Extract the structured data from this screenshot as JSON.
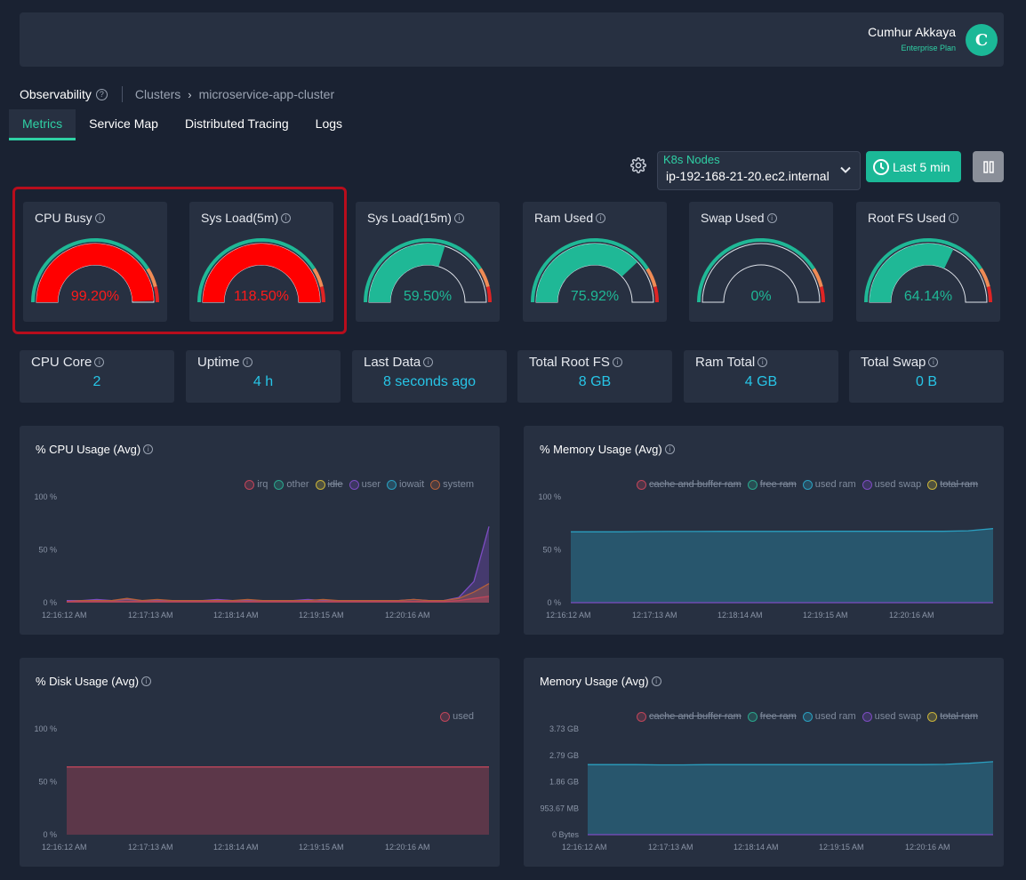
{
  "user": {
    "name": "Cumhur Akkaya",
    "plan": "Enterprise Plan",
    "avatar_letter": "C"
  },
  "breadcrumb": {
    "app": "Observability",
    "clusters": "Clusters",
    "arrow": "›",
    "cluster": "microservice-app-cluster",
    "help_glyph": "?"
  },
  "tabs": [
    {
      "label": "Metrics",
      "active": true
    },
    {
      "label": "Service Map",
      "active": false
    },
    {
      "label": "Distributed Tracing",
      "active": false
    },
    {
      "label": "Logs",
      "active": false
    }
  ],
  "controls": {
    "node_select_label": "K8s Nodes",
    "node_select_value": "ip-192-168-21-20.ec2.internal",
    "time_range": "Last 5 min",
    "icons": {
      "settings": "gear-icon",
      "time": "clock-icon",
      "pause": "pause-icon",
      "dropdown": "chevron-down-icon"
    }
  },
  "gauges": [
    {
      "title": "CPU Busy",
      "value": "99.20%",
      "fraction": 0.992,
      "color": "#ff0000"
    },
    {
      "title": "Sys Load(5m)",
      "value": "118.50%",
      "fraction": 1.0,
      "color": "#ff0000"
    },
    {
      "title": "Sys Load(15m)",
      "value": "59.50%",
      "fraction": 0.595,
      "color": "#1fb896"
    },
    {
      "title": "Ram Used",
      "value": "75.92%",
      "fraction": 0.7592,
      "color": "#1fb896"
    },
    {
      "title": "Swap Used",
      "value": "0%",
      "fraction": 0,
      "color": "#1fb896"
    },
    {
      "title": "Root FS Used",
      "value": "64.14%",
      "fraction": 0.6414,
      "color": "#1fb896"
    }
  ],
  "stats": [
    {
      "title": "CPU Core",
      "value": "2"
    },
    {
      "title": "Uptime",
      "value": "4 h"
    },
    {
      "title": "Last Data",
      "value": "8 seconds ago"
    },
    {
      "title": "Total Root FS",
      "value": "8 GB"
    },
    {
      "title": "Ram Total",
      "value": "4 GB"
    },
    {
      "title": "Total Swap",
      "value": "0 B"
    }
  ],
  "charts": [
    {
      "title": "% CPU Usage (Avg)",
      "legend": [
        {
          "name": "irq",
          "color": "#c0455a",
          "disabled": false
        },
        {
          "name": "other",
          "color": "#2aa58c",
          "disabled": false
        },
        {
          "name": "idle",
          "color": "#c9b33a",
          "disabled": true
        },
        {
          "name": "user",
          "color": "#7d4cc2",
          "disabled": false
        },
        {
          "name": "iowait",
          "color": "#2a9fc0",
          "disabled": false
        },
        {
          "name": "system",
          "color": "#b5603a",
          "disabled": false
        }
      ],
      "y_ticks": [
        "100 %",
        "50 %",
        "0 %"
      ],
      "x_ticks": [
        "12:16:12 AM",
        "12:17:13 AM",
        "12:18:14 AM",
        "12:19:15 AM",
        "12:20:16 AM"
      ]
    },
    {
      "title": "% Memory Usage (Avg)",
      "legend": [
        {
          "name": "cache and buffer ram",
          "color": "#c0455a",
          "disabled": true
        },
        {
          "name": "free ram",
          "color": "#2aa58c",
          "disabled": true
        },
        {
          "name": "used ram",
          "color": "#2a9fc0",
          "disabled": false
        },
        {
          "name": "used swap",
          "color": "#7d4cc2",
          "disabled": false
        },
        {
          "name": "total ram",
          "color": "#c9b33a",
          "disabled": true
        }
      ],
      "y_ticks": [
        "100 %",
        "50 %",
        "0 %"
      ],
      "x_ticks": [
        "12:16:12 AM",
        "12:17:13 AM",
        "12:18:14 AM",
        "12:19:15 AM",
        "12:20:16 AM"
      ]
    },
    {
      "title": "% Disk Usage (Avg)",
      "legend": [
        {
          "name": "used",
          "color": "#c0455a",
          "disabled": false
        }
      ],
      "y_ticks": [
        "100 %",
        "50 %",
        "0 %"
      ],
      "x_ticks": [
        "12:16:12 AM",
        "12:17:13 AM",
        "12:18:14 AM",
        "12:19:15 AM",
        "12:20:16 AM"
      ]
    },
    {
      "title": "Memory Usage (Avg)",
      "legend": [
        {
          "name": "cache and buffer ram",
          "color": "#c0455a",
          "disabled": true
        },
        {
          "name": "free ram",
          "color": "#2aa58c",
          "disabled": true
        },
        {
          "name": "used ram",
          "color": "#2a9fc0",
          "disabled": false
        },
        {
          "name": "used swap",
          "color": "#7d4cc2",
          "disabled": false
        },
        {
          "name": "total ram",
          "color": "#c9b33a",
          "disabled": true
        }
      ],
      "y_ticks": [
        "3.73 GB",
        "2.79 GB",
        "1.86 GB",
        "953.67 MB",
        "0 Bytes"
      ],
      "x_ticks": [
        "12:16:12 AM",
        "12:17:13 AM",
        "12:18:14 AM",
        "12:19:15 AM",
        "12:20:16 AM"
      ]
    }
  ],
  "chart_data": [
    {
      "type": "area",
      "ylim": [
        0,
        100
      ],
      "series": [
        {
          "name": "user",
          "color": "#7d4cc2",
          "values": [
            2,
            2,
            3,
            2,
            3,
            2,
            2,
            2,
            2,
            2,
            3,
            2,
            2,
            2,
            2,
            2,
            3,
            2,
            2,
            2,
            2,
            2,
            2,
            3,
            2,
            2,
            5,
            20,
            72
          ]
        },
        {
          "name": "system",
          "color": "#b5603a",
          "values": [
            1,
            2,
            2,
            2,
            4,
            2,
            3,
            2,
            2,
            2,
            2,
            2,
            3,
            2,
            2,
            2,
            2,
            3,
            2,
            2,
            2,
            2,
            2,
            3,
            2,
            2,
            4,
            10,
            18
          ]
        },
        {
          "name": "irq",
          "color": "#c0455a",
          "values": [
            1,
            1,
            1,
            1,
            1,
            1,
            1,
            1,
            1,
            1,
            1,
            1,
            1,
            1,
            1,
            1,
            1,
            1,
            1,
            1,
            1,
            1,
            1,
            1,
            1,
            1,
            2,
            4,
            6
          ]
        }
      ]
    },
    {
      "type": "area",
      "ylim": [
        0,
        100
      ],
      "series": [
        {
          "name": "used ram",
          "color": "#2a9fc0",
          "values": [
            67,
            67,
            67,
            67.2,
            67.3,
            67.3,
            67.4,
            67.4,
            67.4,
            67.4,
            67.5,
            67.5,
            67.5,
            67.5,
            67.5,
            67.5,
            68,
            70
          ]
        },
        {
          "name": "used swap",
          "color": "#7d4cc2",
          "values": [
            0,
            0,
            0,
            0,
            0,
            0,
            0,
            0,
            0,
            0,
            0,
            0,
            0,
            0,
            0,
            0,
            0,
            0
          ]
        }
      ]
    },
    {
      "type": "area",
      "ylim": [
        0,
        100
      ],
      "series": [
        {
          "name": "used",
          "color": "#c0455a",
          "values": [
            64,
            64,
            64,
            64,
            64,
            64,
            64,
            64,
            64,
            64,
            64,
            64,
            64,
            64,
            64,
            64,
            64,
            64
          ]
        }
      ]
    },
    {
      "type": "area",
      "ylim": [
        0,
        4
      ],
      "series": [
        {
          "name": "used ram",
          "color": "#2a9fc0",
          "values": [
            2.65,
            2.65,
            2.65,
            2.64,
            2.64,
            2.65,
            2.65,
            2.65,
            2.65,
            2.65,
            2.65,
            2.65,
            2.65,
            2.65,
            2.65,
            2.66,
            2.7,
            2.76
          ]
        },
        {
          "name": "used swap",
          "color": "#7d4cc2",
          "values": [
            0,
            0,
            0,
            0,
            0,
            0,
            0,
            0,
            0,
            0,
            0,
            0,
            0,
            0,
            0,
            0,
            0,
            0
          ]
        }
      ]
    }
  ]
}
